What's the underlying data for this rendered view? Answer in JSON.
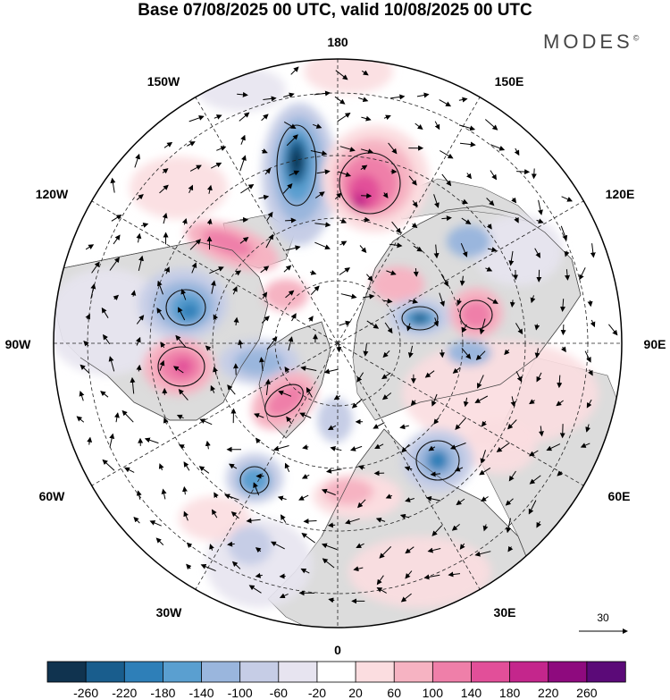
{
  "header": {
    "title": "Base 07/08/2025 00 UTC, valid 10/08/2025 00 UTC",
    "brand": "MODES",
    "brand_mark": "©"
  },
  "map": {
    "projection": "north-polar-stereographic",
    "longitude_labels": {
      "top": "180",
      "bottom": "0",
      "left": "90W",
      "right": "90E",
      "upper_left_1": "150W",
      "upper_left_2": "120W",
      "upper_right_1": "150E",
      "upper_right_2": "120E",
      "lower_left_1": "60W",
      "lower_left_2": "30W",
      "lower_right_1": "60E",
      "lower_right_2": "30E"
    },
    "vector_reference": {
      "label": "30"
    }
  },
  "colorbar": {
    "colors": [
      "#10334f",
      "#195d8d",
      "#2e7fb8",
      "#5a9fd0",
      "#9ab6dd",
      "#c6cde6",
      "#e7e4f0",
      "#ffffff",
      "#fbdde0",
      "#f6b3c2",
      "#ef7fa9",
      "#e24f99",
      "#c4268c",
      "#8e0a7e",
      "#5b0a78"
    ],
    "labels": [
      "-260",
      "-220",
      "-180",
      "-140",
      "-100",
      "-60",
      "-20",
      "20",
      "60",
      "100",
      "140",
      "180",
      "220",
      "260"
    ]
  },
  "palette": {
    "land": "#dcdcdc",
    "frame": "#000000"
  }
}
